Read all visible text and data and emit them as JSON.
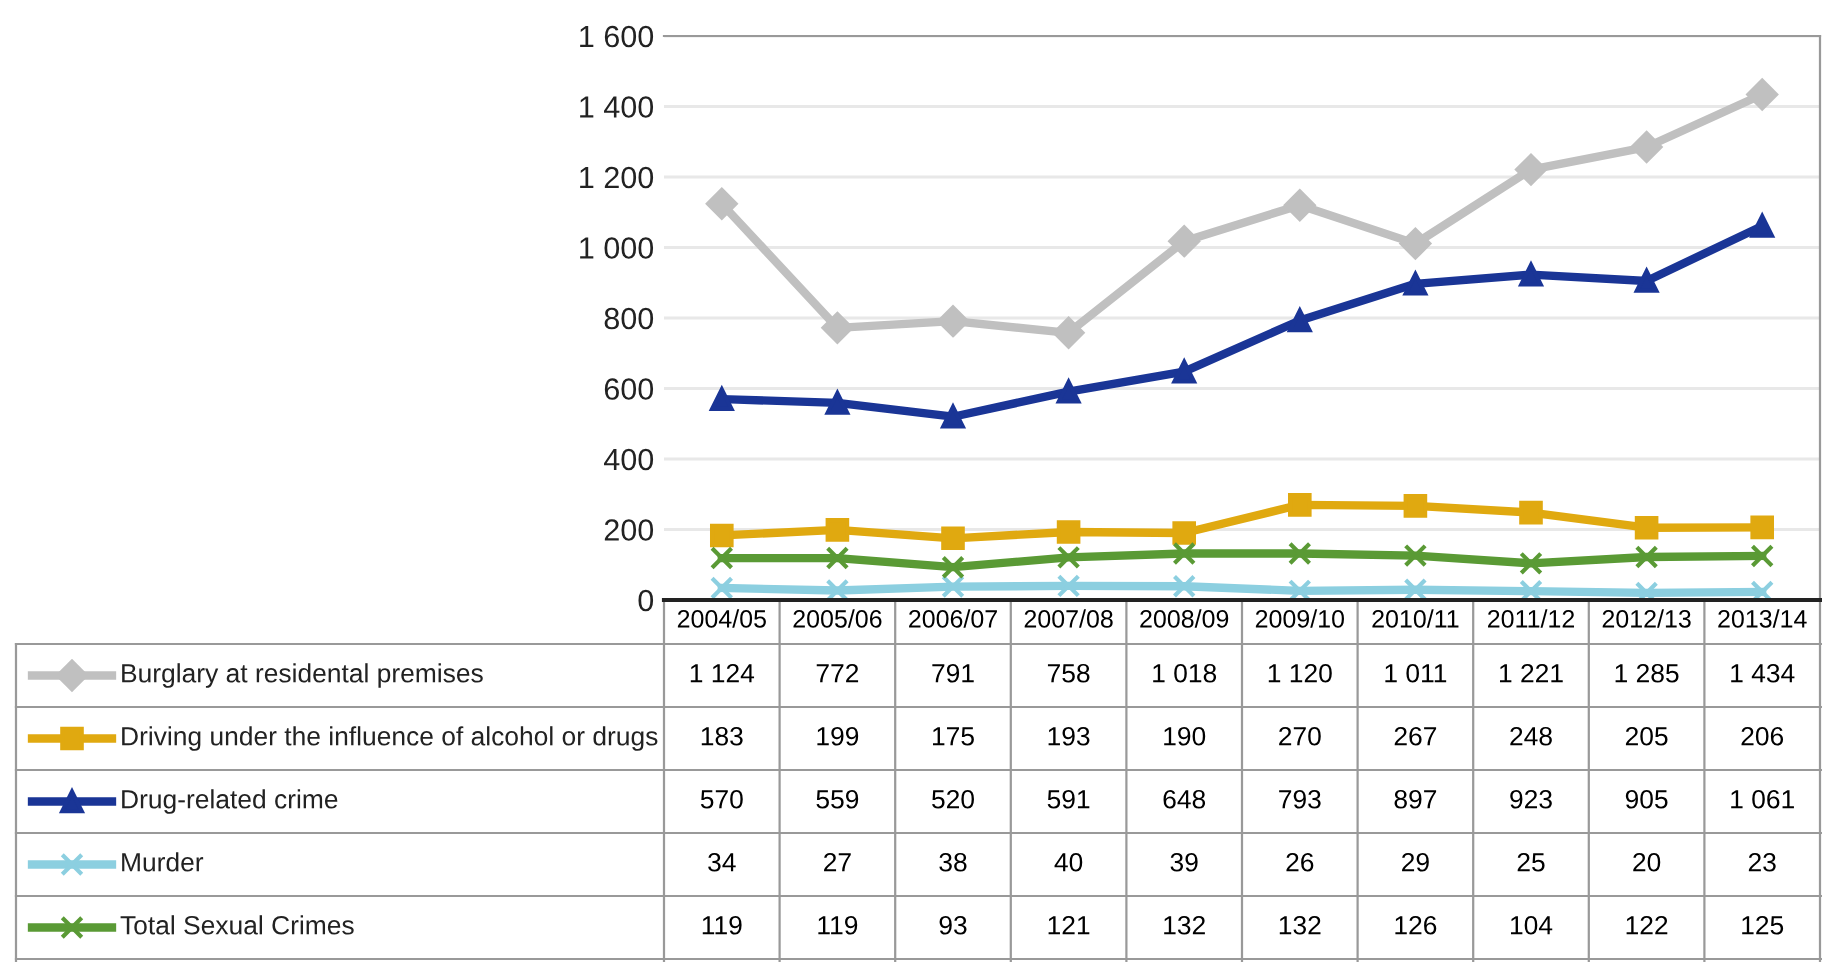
{
  "chart_data": {
    "type": "line",
    "categories": [
      "2004/05",
      "2005/06",
      "2006/07",
      "2007/08",
      "2008/09",
      "2009/10",
      "2010/11",
      "2011/12",
      "2012/13",
      "2013/14"
    ],
    "series": [
      {
        "name": "Burglary at residental premises",
        "color": "#c0c0c0",
        "marker": "diamond",
        "values": [
          1124,
          772,
          791,
          758,
          1018,
          1120,
          1011,
          1221,
          1285,
          1434
        ]
      },
      {
        "name": "Driving under the influence of alcohol or drugs",
        "color": "#e0a910",
        "marker": "square",
        "values": [
          183,
          199,
          175,
          193,
          190,
          270,
          267,
          248,
          205,
          206
        ]
      },
      {
        "name": "Drug-related crime",
        "color": "#1a3596",
        "marker": "triangle",
        "values": [
          570,
          559,
          520,
          591,
          648,
          793,
          897,
          923,
          905,
          1061
        ]
      },
      {
        "name": "Murder",
        "color": "#8ccfe0",
        "marker": "cross",
        "values": [
          34,
          27,
          38,
          40,
          39,
          26,
          29,
          25,
          20,
          23
        ]
      },
      {
        "name": "Total Sexual Crimes",
        "color": "#5a9a35",
        "marker": "cross",
        "values": [
          119,
          119,
          93,
          121,
          132,
          132,
          126,
          104,
          122,
          125
        ]
      }
    ],
    "ylim": [
      0,
      1600
    ],
    "yticks": [
      {
        "value": 0,
        "label": "0"
      },
      {
        "value": 200,
        "label": "200"
      },
      {
        "value": 400,
        "label": "400"
      },
      {
        "value": 600,
        "label": "600"
      },
      {
        "value": 800,
        "label": "800"
      },
      {
        "value": 1000,
        "label": "1 000"
      },
      {
        "value": 1200,
        "label": "1 200"
      },
      {
        "value": 1400,
        "label": "1 400"
      },
      {
        "value": 1600,
        "label": "1 600"
      }
    ],
    "grid": "y",
    "data_labels": true,
    "legend": "left",
    "line_style": "solid"
  }
}
